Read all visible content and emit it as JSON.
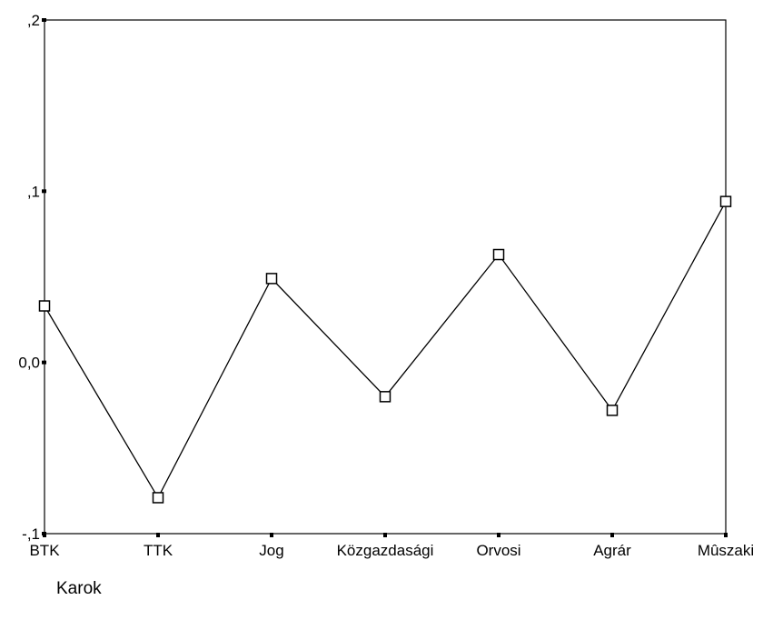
{
  "chart_data": {
    "type": "line",
    "title": "",
    "xlabel": "Karok",
    "ylabel": "",
    "categories": [
      "BTK",
      "TTK",
      "Jog",
      "Közgazdasági",
      "Orvosi",
      "Agrár",
      "Mûszaki"
    ],
    "series": [
      {
        "values": [
          0.033,
          -0.079,
          0.049,
          -0.02,
          0.063,
          -0.028,
          0.094
        ],
        "marker": "open-square"
      }
    ],
    "ylim": [
      -0.1,
      0.2
    ],
    "yticks": [
      {
        "value": -0.1,
        "label": "-,1"
      },
      {
        "value": 0.0,
        "label": "0,0"
      },
      {
        "value": 0.1,
        "label": ",1"
      },
      {
        "value": 0.2,
        "label": ",2"
      }
    ],
    "grid": false,
    "line_color": "#000000",
    "marker_edge_color": "#000000",
    "background": "#ffffff"
  }
}
